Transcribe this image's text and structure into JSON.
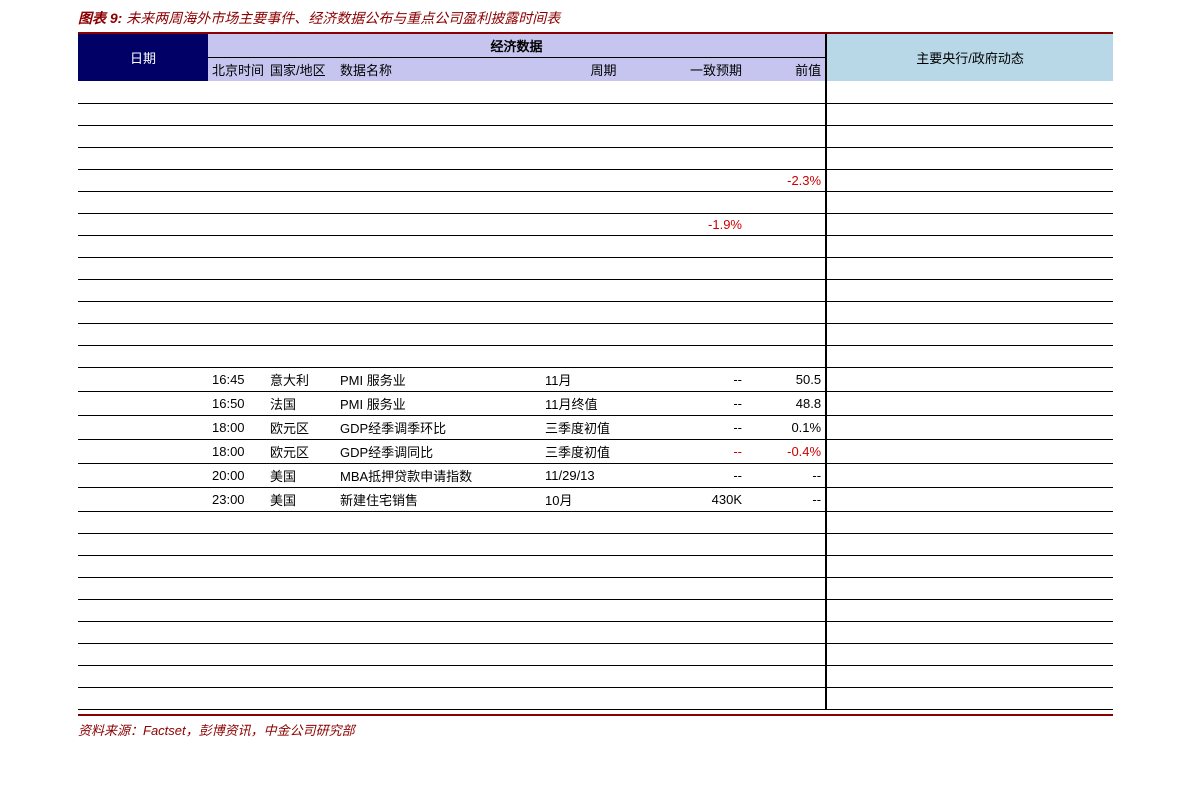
{
  "caption": {
    "label": "图表 9:",
    "title": "未来两周海外市场主要事件、经济数据公布与重点公司盈利披露时间表"
  },
  "header": {
    "date": "日期",
    "econ_group": "经济数据",
    "time": "北京时间",
    "country": "国家/地区",
    "name": "数据名称",
    "period": "周期",
    "estimate": "一致预期",
    "prev": "前值",
    "gov": "主要央行/政府动态"
  },
  "rows": [
    {
      "time": "",
      "ctry": "",
      "name": "",
      "per": "",
      "est": "",
      "prev": "",
      "neg": false,
      "gov": ""
    },
    {
      "time": "",
      "ctry": "",
      "name": "",
      "per": "",
      "est": "",
      "prev": "",
      "neg": false,
      "gov": ""
    },
    {
      "time": "",
      "ctry": "",
      "name": "",
      "per": "",
      "est": "",
      "prev": "",
      "neg": false,
      "gov": ""
    },
    {
      "time": "",
      "ctry": "",
      "name": "",
      "per": "",
      "est": "",
      "prev": "",
      "neg": false,
      "gov": ""
    },
    {
      "time": "",
      "ctry": "",
      "name": "",
      "per": "",
      "est": "",
      "prev": "-2.3%",
      "neg": true,
      "gov": ""
    },
    {
      "time": "",
      "ctry": "",
      "name": "",
      "per": "",
      "est": "",
      "prev": "",
      "neg": false,
      "gov": ""
    },
    {
      "time": "",
      "ctry": "",
      "name": "",
      "per": "",
      "est": "-1.9%",
      "prev": "",
      "neg": true,
      "gov": ""
    },
    {
      "time": "",
      "ctry": "",
      "name": "",
      "per": "",
      "est": "",
      "prev": "",
      "neg": false,
      "gov": ""
    },
    {
      "time": "",
      "ctry": "",
      "name": "",
      "per": "",
      "est": "",
      "prev": "",
      "neg": false,
      "gov": ""
    },
    {
      "time": "",
      "ctry": "",
      "name": "",
      "per": "",
      "est": "",
      "prev": "",
      "neg": false,
      "gov": ""
    },
    {
      "time": "",
      "ctry": "",
      "name": "",
      "per": "",
      "est": "",
      "prev": "",
      "neg": false,
      "gov": ""
    },
    {
      "time": "",
      "ctry": "",
      "name": "",
      "per": "",
      "est": "",
      "prev": "",
      "neg": false,
      "gov": ""
    },
    {
      "time": "",
      "ctry": "",
      "name": "",
      "per": "",
      "est": "",
      "prev": "",
      "neg": false,
      "gov": ""
    },
    {
      "time": "16:45",
      "ctry": "意大利",
      "name": "PMI 服务业",
      "per": "11月",
      "est": "--",
      "prev": "50.5",
      "neg": false,
      "gov": ""
    },
    {
      "time": "16:50",
      "ctry": "法国",
      "name": "PMI 服务业",
      "per": "11月终值",
      "est": "--",
      "prev": "48.8",
      "neg": false,
      "gov": ""
    },
    {
      "time": "18:00",
      "ctry": "欧元区",
      "name": "GDP经季调季环比",
      "per": "三季度初值",
      "est": "--",
      "prev": "0.1%",
      "neg": false,
      "gov": ""
    },
    {
      "time": "18:00",
      "ctry": "欧元区",
      "name": "GDP经季调同比",
      "per": "三季度初值",
      "est": "--",
      "prev": "-0.4%",
      "neg": true,
      "gov": ""
    },
    {
      "time": "20:00",
      "ctry": "美国",
      "name": "MBA抵押贷款申请指数",
      "per": "11/29/13",
      "est": "--",
      "prev": "--",
      "neg": false,
      "gov": ""
    },
    {
      "time": "23:00",
      "ctry": "美国",
      "name": "新建住宅销售",
      "per": "10月",
      "est": "430K",
      "prev": "--",
      "neg": false,
      "gov": ""
    },
    {
      "time": "",
      "ctry": "",
      "name": "",
      "per": "",
      "est": "",
      "prev": "",
      "neg": false,
      "gov": ""
    },
    {
      "time": "",
      "ctry": "",
      "name": "",
      "per": "",
      "est": "",
      "prev": "",
      "neg": false,
      "gov": ""
    },
    {
      "time": "",
      "ctry": "",
      "name": "",
      "per": "",
      "est": "",
      "prev": "",
      "neg": false,
      "gov": ""
    },
    {
      "time": "",
      "ctry": "",
      "name": "",
      "per": "",
      "est": "",
      "prev": "",
      "neg": false,
      "gov": ""
    },
    {
      "time": "",
      "ctry": "",
      "name": "",
      "per": "",
      "est": "",
      "prev": "",
      "neg": false,
      "gov": ""
    },
    {
      "time": "",
      "ctry": "",
      "name": "",
      "per": "",
      "est": "",
      "prev": "",
      "neg": false,
      "gov": ""
    },
    {
      "time": "",
      "ctry": "",
      "name": "",
      "per": "",
      "est": "",
      "prev": "",
      "neg": false,
      "gov": ""
    },
    {
      "time": "",
      "ctry": "",
      "name": "",
      "per": "",
      "est": "",
      "prev": "",
      "neg": false,
      "gov": ""
    },
    {
      "time": "",
      "ctry": "",
      "name": "",
      "per": "",
      "est": "",
      "prev": "",
      "neg": false,
      "gov": ""
    }
  ],
  "source": "资料来源：Factset，彭博资讯，中金公司研究部",
  "colors": {
    "rule": "#8b0000",
    "date_hdr_bg": "#000066",
    "econ_hdr_bg": "#c5c5f0",
    "gov_hdr_bg": "#b8d8e8",
    "neg_text": "#cc0000"
  }
}
